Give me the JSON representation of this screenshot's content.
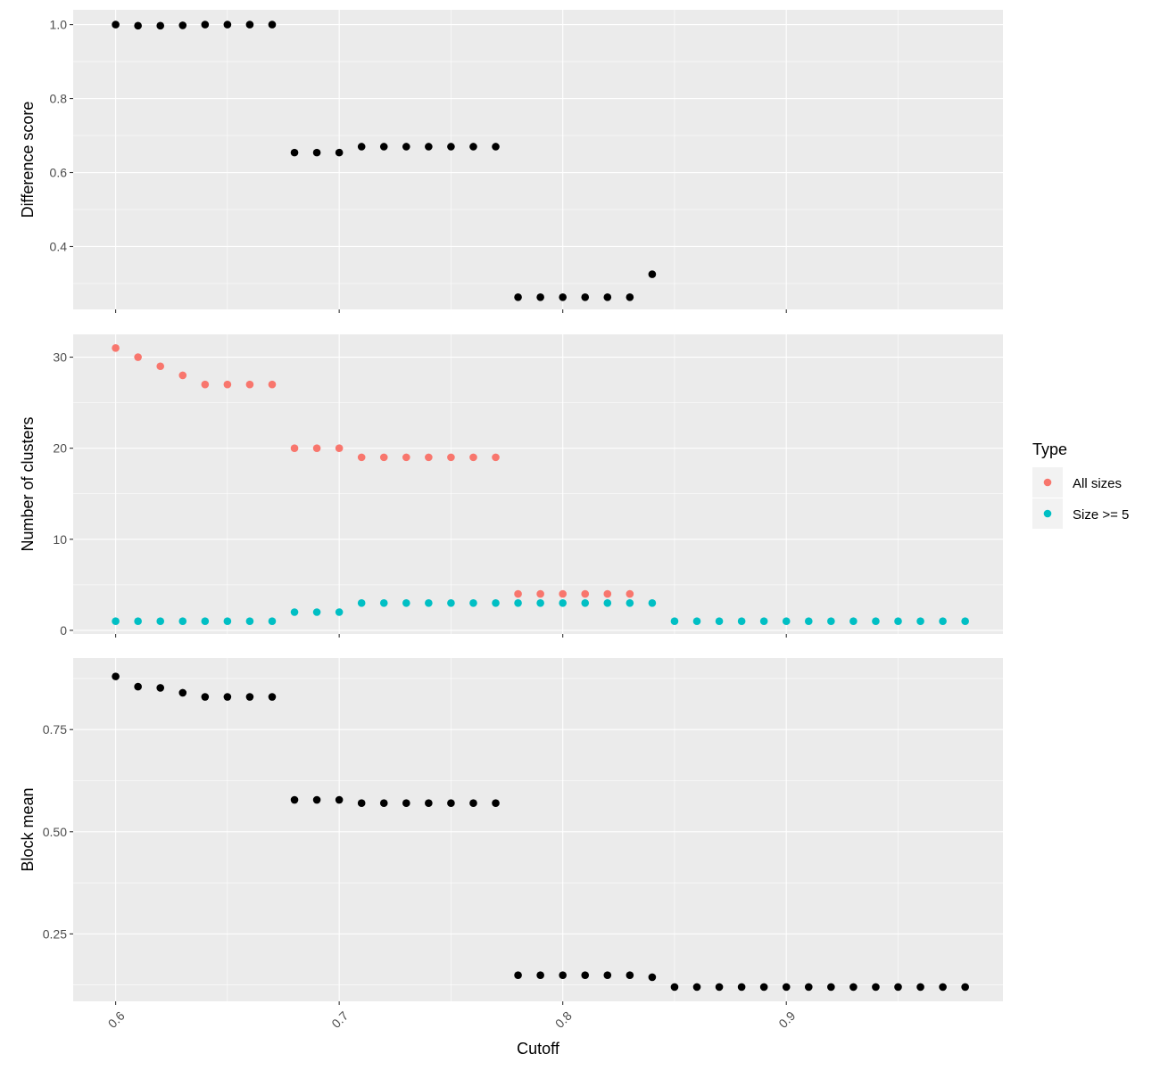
{
  "chart_data": [
    {
      "type": "scatter",
      "ylabel": "Difference score",
      "ylim": [
        0.23,
        1.04
      ],
      "yticks": [
        0.4,
        0.6,
        0.8,
        1.0
      ],
      "ytick_labels": [
        "0.4",
        "0.6",
        "0.8",
        "1.0"
      ],
      "series": [
        {
          "color": "#000000",
          "x": [
            0.6,
            0.61,
            0.62,
            0.63,
            0.64,
            0.65,
            0.66,
            0.67,
            0.68,
            0.69,
            0.7,
            0.71,
            0.72,
            0.73,
            0.74,
            0.75,
            0.76,
            0.77,
            0.78,
            0.79,
            0.8,
            0.81,
            0.82,
            0.83,
            0.84
          ],
          "y": [
            1.0,
            0.997,
            0.997,
            0.998,
            1.0,
            1.0,
            1.0,
            1.0,
            0.654,
            0.654,
            0.654,
            0.67,
            0.67,
            0.67,
            0.67,
            0.67,
            0.67,
            0.67,
            0.263,
            0.263,
            0.263,
            0.263,
            0.263,
            0.263,
            0.325
          ]
        }
      ]
    },
    {
      "type": "scatter",
      "ylabel": "Number of clusters",
      "ylim": [
        -0.4,
        32.5
      ],
      "yticks": [
        0,
        10,
        20,
        30
      ],
      "ytick_labels": [
        "0",
        "10",
        "20",
        "30"
      ],
      "series": [
        {
          "name": "All sizes",
          "color": "#F8766D",
          "x": [
            0.6,
            0.61,
            0.62,
            0.63,
            0.64,
            0.65,
            0.66,
            0.67,
            0.68,
            0.69,
            0.7,
            0.71,
            0.72,
            0.73,
            0.74,
            0.75,
            0.76,
            0.77,
            0.78,
            0.79,
            0.8,
            0.81,
            0.82,
            0.83
          ],
          "y": [
            31,
            30,
            29,
            28,
            27,
            27,
            27,
            27,
            20,
            20,
            20,
            19,
            19,
            19,
            19,
            19,
            19,
            19,
            4,
            4,
            4,
            4,
            4,
            4
          ]
        },
        {
          "name": "Size >= 5",
          "color": "#00BFC4",
          "x": [
            0.6,
            0.61,
            0.62,
            0.63,
            0.64,
            0.65,
            0.66,
            0.67,
            0.68,
            0.69,
            0.7,
            0.71,
            0.72,
            0.73,
            0.74,
            0.75,
            0.76,
            0.77,
            0.78,
            0.79,
            0.8,
            0.81,
            0.82,
            0.83,
            0.84,
            0.85,
            0.86,
            0.87,
            0.88,
            0.89,
            0.9,
            0.91,
            0.92,
            0.93,
            0.94,
            0.95,
            0.96,
            0.97,
            0.98
          ],
          "y": [
            1,
            1,
            1,
            1,
            1,
            1,
            1,
            1,
            2,
            2,
            2,
            3,
            3,
            3,
            3,
            3,
            3,
            3,
            3,
            3,
            3,
            3,
            3,
            3,
            3,
            1,
            1,
            1,
            1,
            1,
            1,
            1,
            1,
            1,
            1,
            1,
            1,
            1,
            1
          ]
        }
      ]
    },
    {
      "type": "scatter",
      "ylabel": "Block mean",
      "ylim": [
        0.085,
        0.925
      ],
      "yticks": [
        0.25,
        0.5,
        0.75
      ],
      "ytick_labels": [
        "0.25",
        "0.50",
        "0.75"
      ],
      "series": [
        {
          "color": "#000000",
          "x": [
            0.6,
            0.61,
            0.62,
            0.63,
            0.64,
            0.65,
            0.66,
            0.67,
            0.68,
            0.69,
            0.7,
            0.71,
            0.72,
            0.73,
            0.74,
            0.75,
            0.76,
            0.77,
            0.78,
            0.79,
            0.8,
            0.81,
            0.82,
            0.83,
            0.84,
            0.85,
            0.86,
            0.87,
            0.88,
            0.89,
            0.9,
            0.91,
            0.92,
            0.93,
            0.94,
            0.95,
            0.96,
            0.97,
            0.98
          ],
          "y": [
            0.88,
            0.855,
            0.852,
            0.84,
            0.83,
            0.83,
            0.83,
            0.83,
            0.578,
            0.578,
            0.578,
            0.57,
            0.57,
            0.57,
            0.57,
            0.57,
            0.57,
            0.57,
            0.149,
            0.149,
            0.149,
            0.149,
            0.149,
            0.149,
            0.144,
            0.12,
            0.12,
            0.12,
            0.12,
            0.12,
            0.12,
            0.12,
            0.12,
            0.12,
            0.12,
            0.12,
            0.12,
            0.12,
            0.12
          ]
        }
      ]
    }
  ],
  "x_axis": {
    "label": "Cutoff",
    "xlim": [
      0.581,
      0.9969
    ],
    "ticks": [
      0.6,
      0.7,
      0.8,
      0.9
    ],
    "tick_labels": [
      "0.6",
      "0.7",
      "0.8",
      "0.9"
    ]
  },
  "legend": {
    "title": "Type",
    "placement": "right",
    "items": [
      {
        "label": "All sizes",
        "color": "#F8766D"
      },
      {
        "label": "Size >= 5",
        "color": "#00BFC4"
      }
    ]
  }
}
